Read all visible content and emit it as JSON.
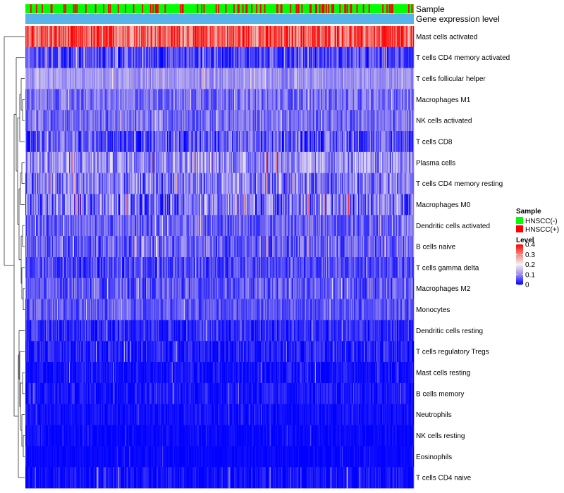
{
  "chart_data": {
    "type": "heatmap",
    "title": "",
    "annotation_labels": {
      "sample": "Sample",
      "expression": "Gene expression level"
    },
    "rows": [
      {
        "label": "Mast cells activated",
        "mean": 0.33,
        "spread": 0.09
      },
      {
        "label": "T cells CD4 memory activated",
        "mean": 0.05,
        "spread": 0.06
      },
      {
        "label": "T cells follicular helper",
        "mean": 0.11,
        "spread": 0.04
      },
      {
        "label": "Macrophages M1",
        "mean": 0.08,
        "spread": 0.05
      },
      {
        "label": "NK cells activated",
        "mean": 0.08,
        "spread": 0.05
      },
      {
        "label": "T cells CD8",
        "mean": 0.06,
        "spread": 0.07
      },
      {
        "label": "Plasma cells",
        "mean": 0.11,
        "spread": 0.08
      },
      {
        "label": "T cells CD4 memory resting",
        "mean": 0.09,
        "spread": 0.08
      },
      {
        "label": "Macrophages M0",
        "mean": 0.09,
        "spread": 0.09
      },
      {
        "label": "Dendritic cells activated",
        "mean": 0.07,
        "spread": 0.05
      },
      {
        "label": "B cells naive",
        "mean": 0.07,
        "spread": 0.06
      },
      {
        "label": "T cells gamma delta",
        "mean": 0.05,
        "spread": 0.05
      },
      {
        "label": "Macrophages M2",
        "mean": 0.06,
        "spread": 0.05
      },
      {
        "label": "Monocytes",
        "mean": 0.06,
        "spread": 0.04
      },
      {
        "label": "Dendritic cells resting",
        "mean": 0.03,
        "spread": 0.04
      },
      {
        "label": "T cells regulatory  Tregs",
        "mean": 0.02,
        "spread": 0.04
      },
      {
        "label": "Mast cells resting",
        "mean": 0.01,
        "spread": 0.03
      },
      {
        "label": "B cells memory",
        "mean": 0.015,
        "spread": 0.03
      },
      {
        "label": "Neutrophils",
        "mean": 0.01,
        "spread": 0.02
      },
      {
        "label": "NK cells resting",
        "mean": 0.005,
        "spread": 0.015
      },
      {
        "label": "Eosinophils",
        "mean": 0.004,
        "spread": 0.012
      },
      {
        "label": "T cells CD4 naive",
        "mean": 0.01,
        "spread": 0.03
      }
    ],
    "n_samples": 480,
    "hnscc_positive_fraction": 0.2,
    "color_scale": {
      "min": 0,
      "max": 0.4,
      "stops": [
        {
          "value": 0,
          "color": "#0000ff"
        },
        {
          "value": 0.1,
          "color": "#9a8cf0"
        },
        {
          "value": 0.2,
          "color": "#f5f0f5"
        },
        {
          "value": 0.3,
          "color": "#f08a80"
        },
        {
          "value": 0.4,
          "color": "#ff0000"
        }
      ]
    },
    "legend": {
      "position": "right",
      "sample_title": "Sample",
      "sample_entries": [
        {
          "label": "HNSCC(-)",
          "color": "#00ff00"
        },
        {
          "label": "HNSCC(+)",
          "color": "#ff0000"
        }
      ],
      "level_title": "Level",
      "level_ticks": [
        "0.4",
        "0.3",
        "0.2",
        "0.1",
        "0"
      ]
    },
    "expression_bar_color": "#56b4e9"
  }
}
